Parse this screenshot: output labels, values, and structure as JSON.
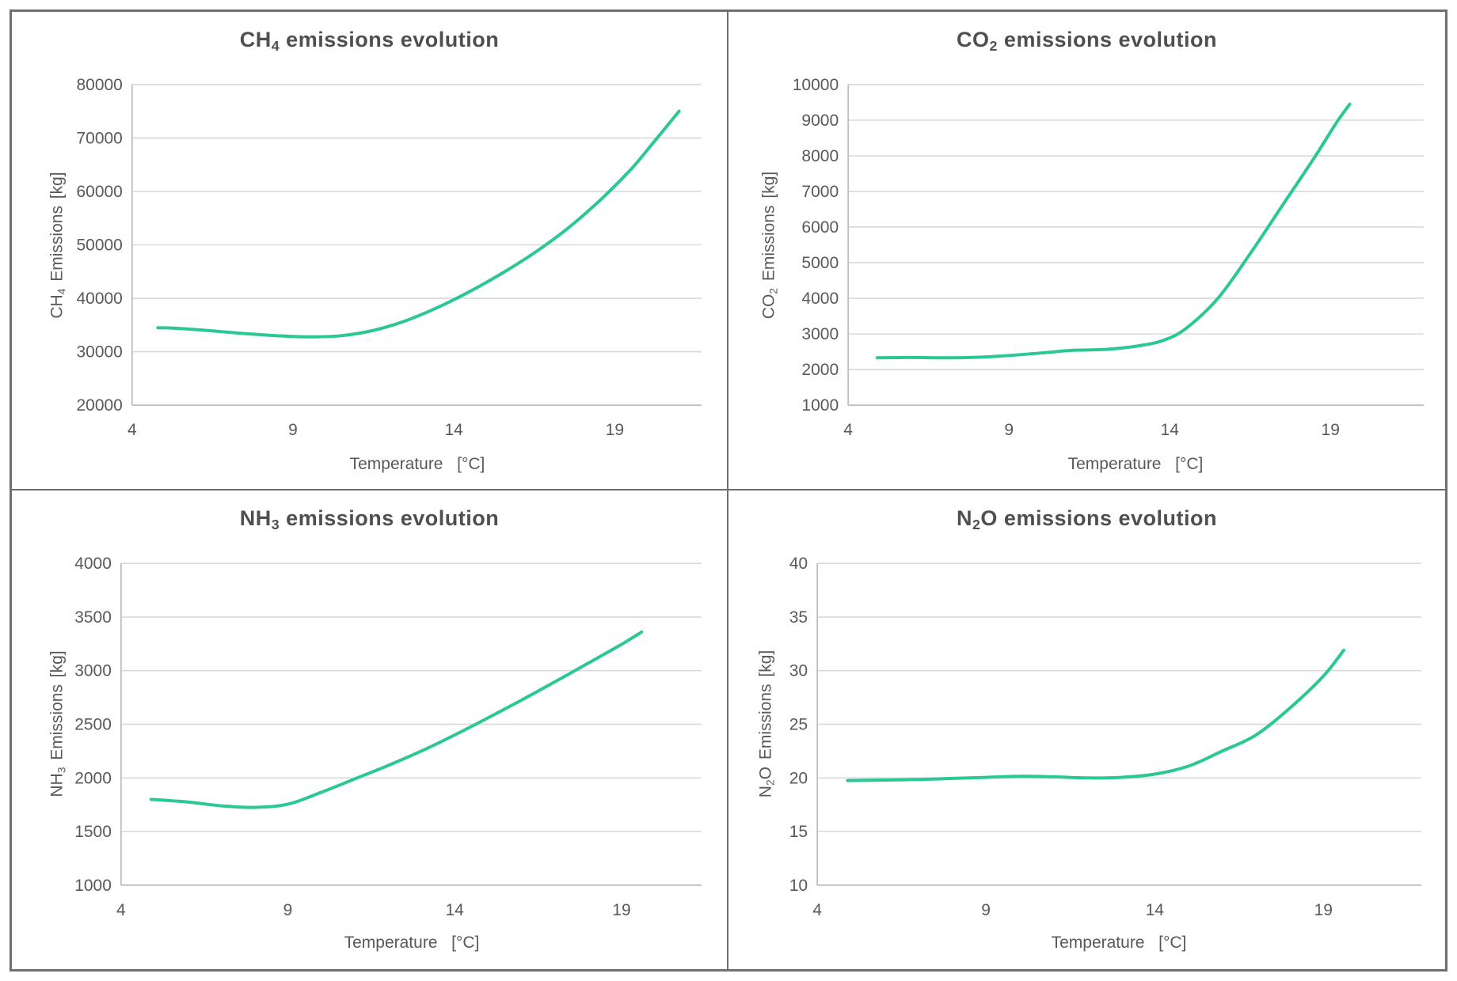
{
  "page": {
    "background": "#ffffff",
    "frame_border_color": "#6f6f6f"
  },
  "style": {
    "line_color": "#2bc893",
    "gridline_color": "#d9d9d9",
    "axis_line_color": "#bfbfbf",
    "tick_label_color": "#595959",
    "axis_title_color": "#595959",
    "chart_title_color": "#4f4f4f"
  },
  "chart_data": [
    {
      "type": "line",
      "title": {
        "text": "CH4 emissions evolution",
        "segments": [
          {
            "text": "CH"
          },
          {
            "text": "4",
            "sub": true
          },
          {
            "text": " emissions evolution"
          }
        ]
      },
      "xlabel": "Temperature  [°C]",
      "ylabel": {
        "text": "CH4 Emissions [kg]",
        "segments": [
          {
            "text": "CH"
          },
          {
            "text": "4",
            "sub": true
          },
          {
            "text": " Emissions [kg]"
          }
        ]
      },
      "x_ticks": [
        4,
        9,
        14,
        19
      ],
      "xlim": [
        4,
        21.7
      ],
      "y_ticks": [
        20000,
        30000,
        40000,
        50000,
        60000,
        70000,
        80000
      ],
      "ylim": [
        20000,
        80000
      ],
      "grid": true,
      "legend": null,
      "series": [
        {
          "name": "CH4 emissions",
          "points": [
            [
              4.8,
              34500
            ],
            [
              5.5,
              34350
            ],
            [
              6.5,
              33900
            ],
            [
              7.5,
              33400
            ],
            [
              8.5,
              33000
            ],
            [
              9.5,
              32780
            ],
            [
              10.5,
              33000
            ],
            [
              11.5,
              34000
            ],
            [
              12.5,
              35800
            ],
            [
              13.5,
              38300
            ],
            [
              14.5,
              41300
            ],
            [
              15.5,
              44700
            ],
            [
              16.5,
              48500
            ],
            [
              17.5,
              52900
            ],
            [
              18.5,
              58100
            ],
            [
              19.5,
              64100
            ],
            [
              20.25,
              69500
            ],
            [
              21,
              75000
            ]
          ]
        }
      ]
    },
    {
      "type": "line",
      "title": {
        "text": "CO2 emissions evolution",
        "segments": [
          {
            "text": "CO"
          },
          {
            "text": "2",
            "sub": true
          },
          {
            "text": " emissions evolution"
          }
        ]
      },
      "xlabel": "Temperature  [°C]",
      "ylabel": {
        "text": "CO2 Emissions [kg]",
        "segments": [
          {
            "text": "CO"
          },
          {
            "text": "2",
            "sub": true
          },
          {
            "text": " Emissions [kg]"
          }
        ]
      },
      "x_ticks": [
        4,
        9,
        14,
        19
      ],
      "xlim": [
        4,
        21.9
      ],
      "y_ticks": [
        1000,
        2000,
        3000,
        4000,
        5000,
        6000,
        7000,
        8000,
        9000,
        10000
      ],
      "ylim": [
        1000,
        10000
      ],
      "grid": true,
      "legend": null,
      "series": [
        {
          "name": "CO2 emissions",
          "points": [
            [
              4.9,
              2330
            ],
            [
              6,
              2340
            ],
            [
              7,
              2330
            ],
            [
              8,
              2345
            ],
            [
              9,
              2395
            ],
            [
              10,
              2465
            ],
            [
              11,
              2540
            ],
            [
              12,
              2565
            ],
            [
              13,
              2660
            ],
            [
              13.8,
              2820
            ],
            [
              14.5,
              3150
            ],
            [
              15.5,
              4000
            ],
            [
              16.5,
              5250
            ],
            [
              17.5,
              6600
            ],
            [
              18.5,
              7950
            ],
            [
              19.2,
              8950
            ],
            [
              19.6,
              9450
            ]
          ]
        }
      ]
    },
    {
      "type": "line",
      "title": {
        "text": "NH3 emissions evolution",
        "segments": [
          {
            "text": "NH"
          },
          {
            "text": "3",
            "sub": true
          },
          {
            "text": " emissions evolution"
          }
        ]
      },
      "xlabel": "Temperature  [°C]",
      "ylabel": {
        "text": "NH3 Emissions [kg]",
        "segments": [
          {
            "text": "NH"
          },
          {
            "text": "3",
            "sub": true
          },
          {
            "text": " Emissions [kg]"
          }
        ]
      },
      "x_ticks": [
        4,
        9,
        14,
        19
      ],
      "xlim": [
        4,
        21.4
      ],
      "y_ticks": [
        1000,
        1500,
        2000,
        2500,
        3000,
        3500,
        4000
      ],
      "ylim": [
        1000,
        4000
      ],
      "grid": true,
      "legend": null,
      "series": [
        {
          "name": "NH3 emissions",
          "points": [
            [
              4.9,
              1800
            ],
            [
              6,
              1775
            ],
            [
              7,
              1740
            ],
            [
              8,
              1725
            ],
            [
              9,
              1755
            ],
            [
              10,
              1865
            ],
            [
              11,
              1990
            ],
            [
              12,
              2115
            ],
            [
              13,
              2250
            ],
            [
              14,
              2400
            ],
            [
              15,
              2560
            ],
            [
              16,
              2725
            ],
            [
              17,
              2895
            ],
            [
              18,
              3070
            ],
            [
              19,
              3245
            ],
            [
              19.6,
              3360
            ]
          ]
        }
      ]
    },
    {
      "type": "line",
      "title": {
        "text": "N2O emissions evolution",
        "segments": [
          {
            "text": "N"
          },
          {
            "text": "2",
            "sub": true
          },
          {
            "text": "O emissions evolution"
          }
        ]
      },
      "xlabel": "Temperature  [°C]",
      "ylabel": {
        "text": "N2O Emissions [kg]",
        "segments": [
          {
            "text": "N"
          },
          {
            "text": "2",
            "sub": true
          },
          {
            "text": "O Emissions [kg]"
          }
        ]
      },
      "x_ticks": [
        4,
        9,
        14,
        19
      ],
      "xlim": [
        4,
        21.9
      ],
      "y_ticks": [
        10,
        15,
        20,
        25,
        30,
        35,
        40
      ],
      "ylim": [
        10,
        40
      ],
      "grid": true,
      "legend": null,
      "series": [
        {
          "name": "N2O emissions",
          "points": [
            [
              4.9,
              19.75
            ],
            [
              6,
              19.8
            ],
            [
              7,
              19.85
            ],
            [
              8,
              19.95
            ],
            [
              9,
              20.05
            ],
            [
              10,
              20.15
            ],
            [
              11,
              20.1
            ],
            [
              12,
              20.0
            ],
            [
              13,
              20.05
            ],
            [
              14,
              20.35
            ],
            [
              15,
              21.1
            ],
            [
              16,
              22.5
            ],
            [
              17,
              24.0
            ],
            [
              18,
              26.5
            ],
            [
              19,
              29.5
            ],
            [
              19.6,
              31.9
            ]
          ]
        }
      ]
    }
  ]
}
